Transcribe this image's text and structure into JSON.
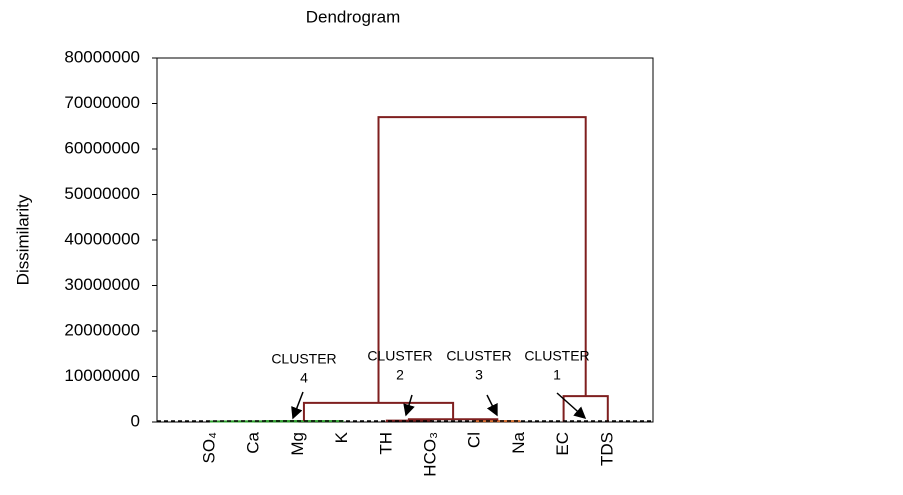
{
  "chart_data": {
    "type": "dendrogram",
    "title": "Dendrogram",
    "y_label": "Dissimilarity",
    "leaves": [
      "SO₄",
      "Ca",
      "Mg",
      "K",
      "TH",
      "HCO₃",
      "Cl",
      "Na",
      "EC",
      "TDS"
    ],
    "links": [
      {
        "children": [
          0,
          1
        ],
        "height": 100000,
        "color": "#2ca02c"
      },
      {
        "children": [
          10,
          2
        ],
        "height": 150000,
        "color": "#2ca02c"
      },
      {
        "children": [
          11,
          3
        ],
        "height": 200000,
        "color": "#2ca02c"
      },
      {
        "children": [
          4,
          5
        ],
        "height": 300000,
        "color": "#7f1f1f"
      },
      {
        "children": [
          6,
          7
        ],
        "height": 200000,
        "color": "#d46a2a"
      },
      {
        "children": [
          13,
          14
        ],
        "height": 600000,
        "color": "#7f1f1f"
      },
      {
        "children": [
          12,
          15
        ],
        "height": 4200000,
        "color": "#7f1f1f"
      },
      {
        "children": [
          8,
          9
        ],
        "height": 5700000,
        "color": "#7f1f1f"
      },
      {
        "children": [
          16,
          17
        ],
        "height": 67000000,
        "color": "#7f1f1f"
      }
    ],
    "annotations": [
      [
        "CLUSTER",
        "4"
      ],
      [
        "CLUSTER",
        "2"
      ],
      [
        "CLUSTER",
        "3"
      ],
      [
        "CLUSTER",
        "1"
      ]
    ],
    "ylim": [
      0,
      80000000
    ],
    "yticks": [
      0,
      10000000,
      20000000,
      30000000,
      40000000,
      50000000,
      60000000,
      70000000,
      80000000
    ]
  }
}
